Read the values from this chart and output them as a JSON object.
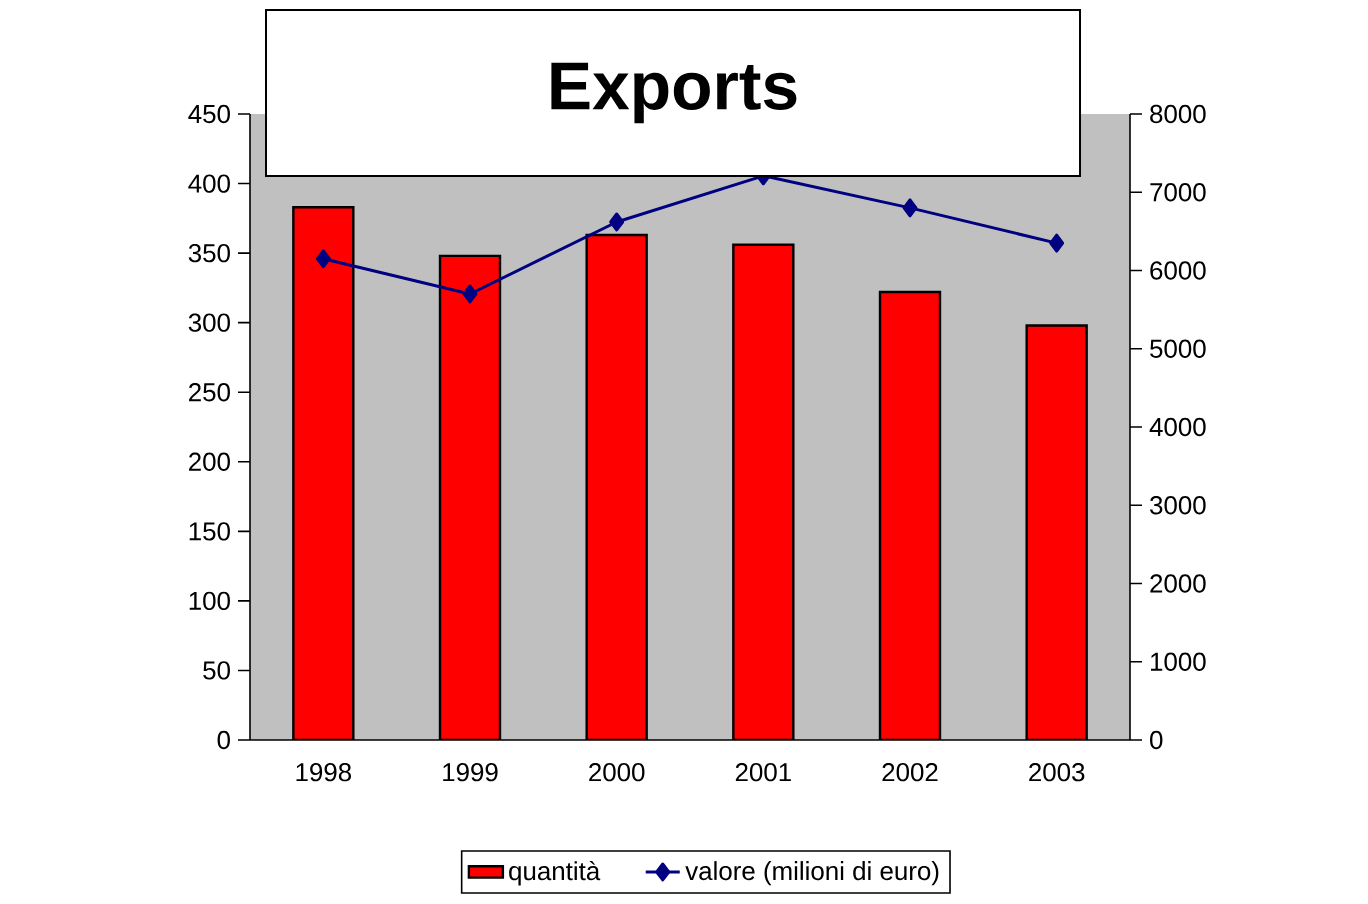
{
  "chart_data": {
    "type": "bar",
    "title": "Exports",
    "categories": [
      "1998",
      "1999",
      "2000",
      "2001",
      "2002",
      "2003"
    ],
    "series": [
      {
        "name": "quantità",
        "color": "#ff0000",
        "values": [
          383,
          348,
          363,
          356,
          322,
          298
        ]
      },
      {
        "name": "valore (milioni di euro)",
        "type": "line",
        "axis": "y2",
        "color": "#000080",
        "values": [
          6150,
          5700,
          6620,
          7210,
          6800,
          6350
        ]
      }
    ],
    "ylim": [
      0,
      450
    ],
    "yticks": [
      0,
      50,
      100,
      150,
      200,
      250,
      300,
      350,
      400,
      450
    ],
    "y2lim": [
      0,
      8000
    ],
    "y2ticks": [
      0,
      1000,
      2000,
      3000,
      4000,
      5000,
      6000,
      7000,
      8000
    ],
    "legend": "bottom",
    "marker": "diamond"
  }
}
